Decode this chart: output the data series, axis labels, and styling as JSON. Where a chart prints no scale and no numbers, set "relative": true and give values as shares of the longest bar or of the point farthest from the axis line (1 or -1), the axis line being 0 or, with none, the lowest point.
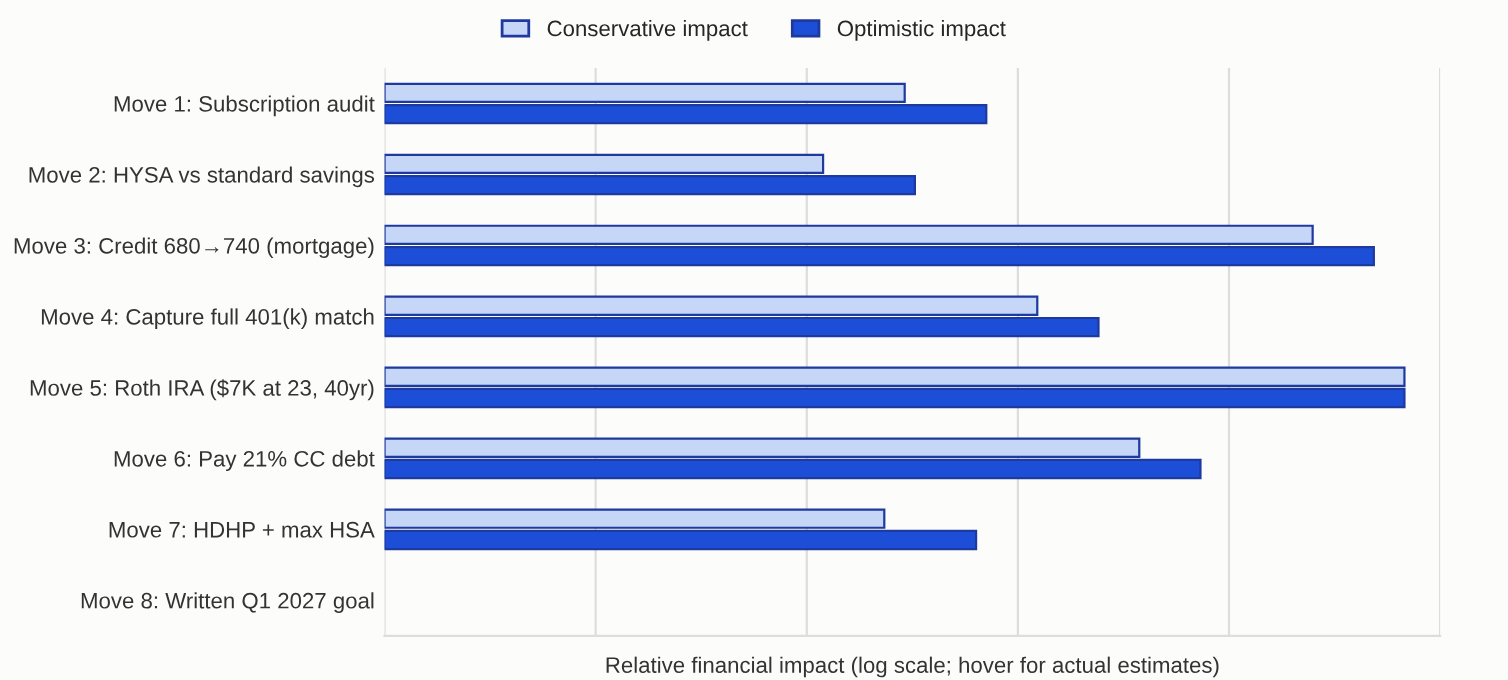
{
  "chart_data": {
    "type": "bar",
    "orientation": "horizontal",
    "relative": true,
    "xlabel": "Relative financial impact (log scale; hover for actual estimates)",
    "categories": [
      "Move 1: Subscription audit",
      "Move 2: HYSA vs standard savings",
      "Move 3: Credit 680→740 (mortgage)",
      "Move 4: Capture full 401(k) match",
      "Move 5: Roth IRA ($7K at 23, 40yr)",
      "Move 6: Pay 21% CC debt",
      "Move 7: HDHP + max HSA",
      "Move 8: Written Q1 2027 goal"
    ],
    "series": [
      {
        "name": "Conservative impact",
        "color": "#c6d6f7",
        "values": [
          0.51,
          0.43,
          0.91,
          0.64,
          1.0,
          0.74,
          0.49,
          null
        ]
      },
      {
        "name": "Optimistic impact",
        "color": "#1d4ed8",
        "values": [
          0.59,
          0.52,
          0.97,
          0.7,
          1.0,
          0.8,
          0.58,
          null
        ]
      }
    ],
    "grid": "x",
    "legend": "top"
  }
}
